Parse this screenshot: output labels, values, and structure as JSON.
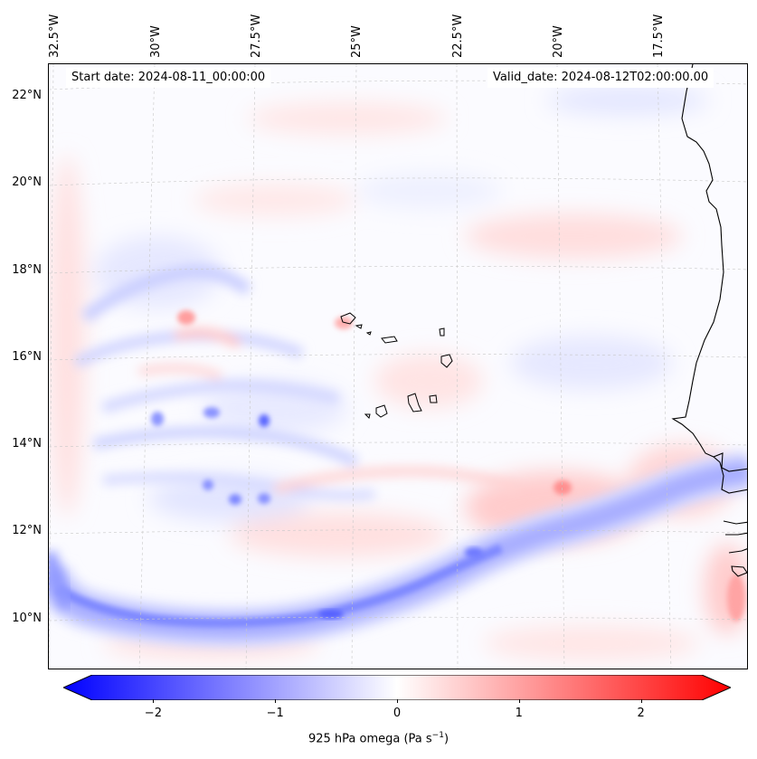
{
  "map": {
    "start_date": "Start date: 2024-08-11_00:00:00",
    "valid_date": "Valid_date: 2024-08-12T02:00:00.00",
    "lon_labels": [
      "32.5°W",
      "30°W",
      "27.5°W",
      "25°W",
      "22.5°W",
      "20°W",
      "17.5°W"
    ],
    "lat_labels": [
      "22°N",
      "20°N",
      "18°N",
      "16°N",
      "14°N",
      "12°N",
      "10°N"
    ],
    "colors": {
      "negative": "#0000ff",
      "positive": "#ff0000",
      "neutral": "#ffffff",
      "coast": "#000000"
    }
  },
  "colorbar": {
    "min": -2.5,
    "max": 2.5,
    "tick_values": [
      -2,
      -1,
      0,
      1,
      2
    ],
    "tick_labels": [
      "−2",
      "−1",
      "0",
      "1",
      "2"
    ],
    "label": "925 hPa omega (Pa s",
    "label_exp": "−1",
    "label_close": ")"
  }
}
